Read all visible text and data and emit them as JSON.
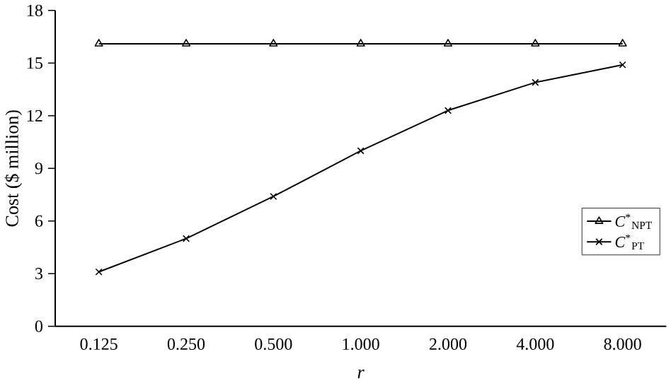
{
  "chart_data": {
    "type": "line",
    "xlabel": "*r*",
    "ylabel": "Cost ($ million)",
    "categories": [
      "0.125",
      "0.250",
      "0.500",
      "1.000",
      "2.000",
      "4.000",
      "8.000"
    ],
    "series": [
      {
        "name": "*C*$^{*}$$_{NPT}$",
        "color": "#000000",
        "marker": "triangle",
        "values": [
          16.1,
          16.1,
          16.1,
          16.1,
          16.1,
          16.1,
          16.1
        ]
      },
      {
        "name": "*C*$^{*}$$_{PT}$",
        "color": "#000000",
        "marker": "cross",
        "values": [
          3.1,
          5.0,
          7.4,
          10.0,
          12.3,
          13.9,
          14.9
        ]
      }
    ],
    "ylim": [
      0,
      18
    ],
    "yticks": [
      0,
      3,
      6,
      9,
      12,
      15,
      18
    ],
    "legend": "right",
    "grid": false,
    "line_style": "solid"
  }
}
